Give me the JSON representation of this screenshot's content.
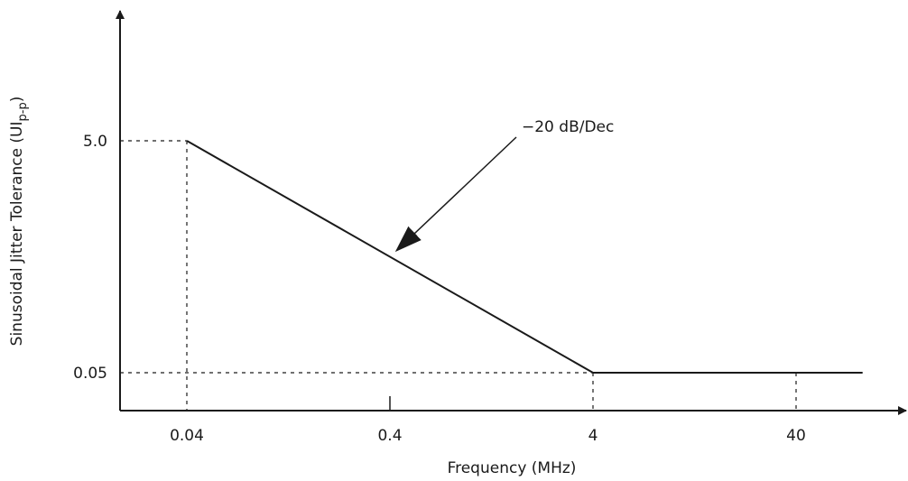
{
  "chart_data": {
    "type": "line",
    "title": "",
    "xlabel": "Frequency (MHz)",
    "ylabel": {
      "main": "Sinusoidal Jitter Tolerance (UI",
      "subscript": "p-p",
      "close": ")"
    },
    "x_scale": "log",
    "xlim": [
      0.02,
      130
    ],
    "ylim": [
      0.005,
      200
    ],
    "x_ticks": [
      {
        "value": 0.04,
        "label": "0.04"
      },
      {
        "value": 0.4,
        "label": "0.4"
      },
      {
        "value": 4,
        "label": "4"
      },
      {
        "value": 40,
        "label": "40"
      }
    ],
    "y_ticks": [
      {
        "value": 5.0,
        "label": "5.0"
      },
      {
        "value": 0.05,
        "label": "0.05"
      }
    ],
    "series": [
      {
        "x": [
          0.04,
          4,
          85
        ],
        "y": [
          5.0,
          0.05,
          0.05
        ]
      }
    ],
    "annotations": [
      {
        "text": "−20 dB/Dec",
        "x": 0.36,
        "y": 0.87
      }
    ],
    "grid": false,
    "legend": "none",
    "colors": {
      "line": "#1a1a1a",
      "axis": "#1a1a1a",
      "guide": "#1a1a1a"
    }
  }
}
